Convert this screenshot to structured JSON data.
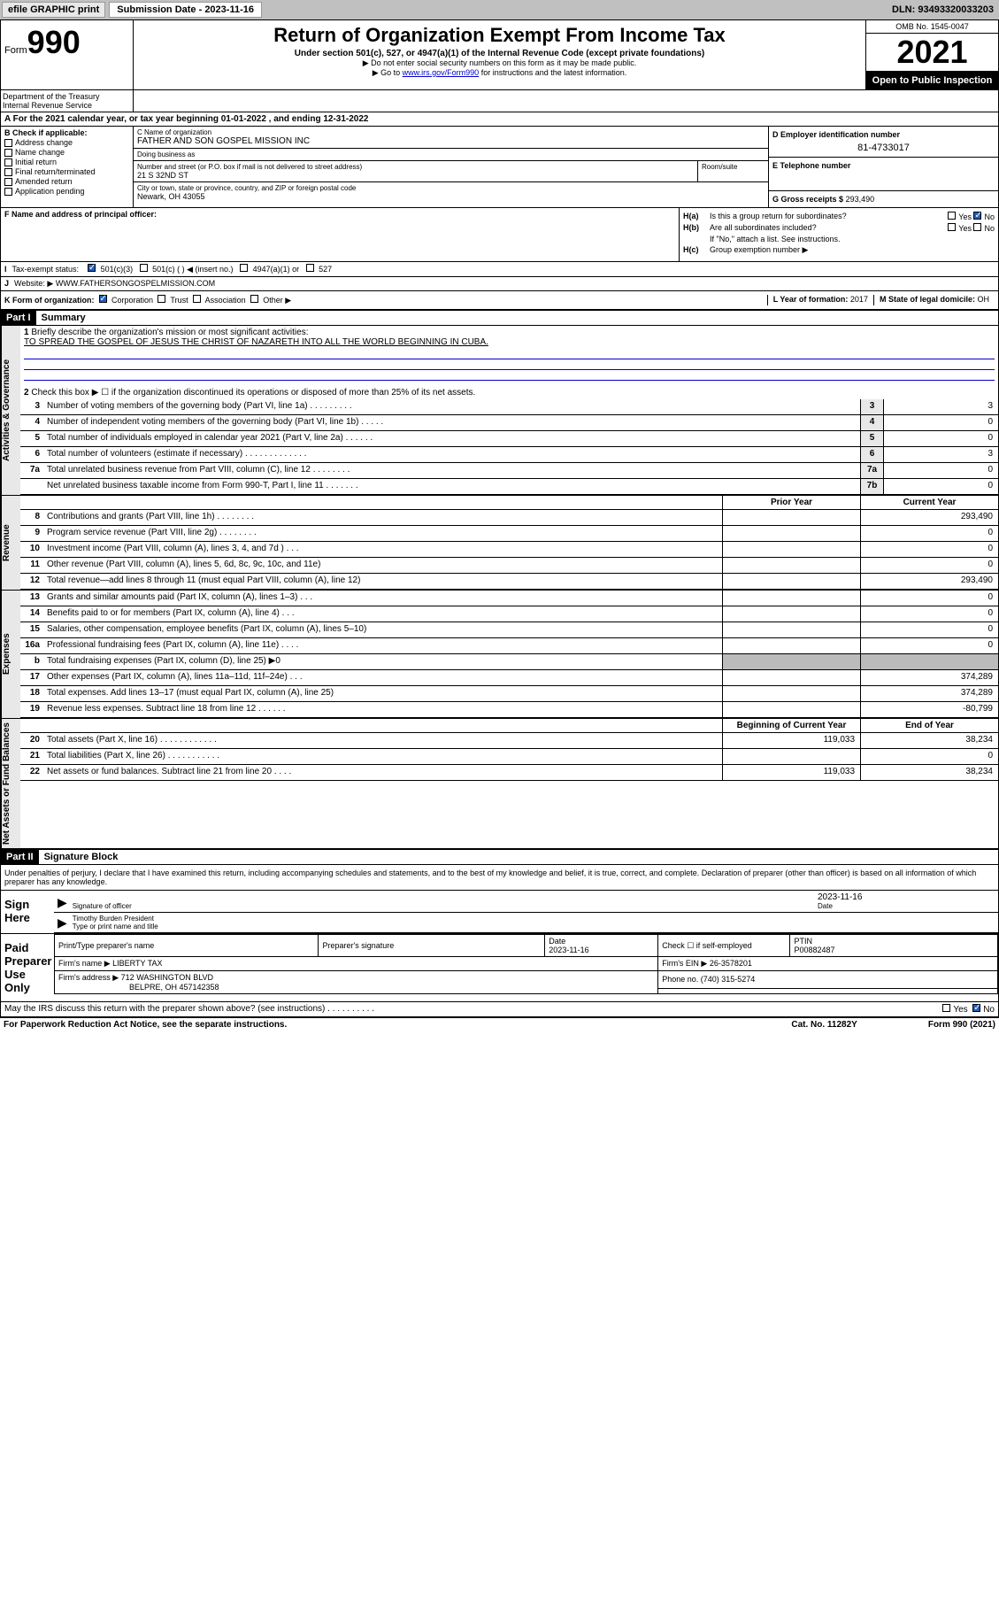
{
  "topbar": {
    "efile": "efile GRAPHIC print",
    "sub_label": "Submission Date - 2023-11-16",
    "dln": "DLN: 93493320033203"
  },
  "header": {
    "form_word": "Form",
    "form_num": "990",
    "title": "Return of Organization Exempt From Income Tax",
    "subtitle": "Under section 501(c), 527, or 4947(a)(1) of the Internal Revenue Code (except private foundations)",
    "note1": "▶ Do not enter social security numbers on this form as it may be made public.",
    "note2_pre": "▶ Go to ",
    "note2_link": "www.irs.gov/Form990",
    "note2_post": " for instructions and the latest information.",
    "dept": "Department of the Treasury\nInternal Revenue Service",
    "omb": "OMB No. 1545-0047",
    "year": "2021",
    "inspection": "Open to Public Inspection"
  },
  "period": "For the 2021 calendar year, or tax year beginning 01-01-2022   , and ending 12-31-2022",
  "section_b": {
    "header": "B Check if applicable:",
    "items": [
      "Address change",
      "Name change",
      "Initial return",
      "Final return/terminated",
      "Amended return",
      "Application pending"
    ]
  },
  "section_c": {
    "name_label": "C Name of organization",
    "name": "FATHER AND SON GOSPEL MISSION INC",
    "dba_label": "Doing business as",
    "dba": "",
    "addr_label": "Number and street (or P.O. box if mail is not delivered to street address)",
    "room_label": "Room/suite",
    "addr": "21 S 32ND ST",
    "city_label": "City or town, state or province, country, and ZIP or foreign postal code",
    "city": "Newark, OH  43055"
  },
  "section_d": {
    "label": "D Employer identification number",
    "val": "81-4733017"
  },
  "section_e": {
    "label": "E Telephone number",
    "val": ""
  },
  "section_g": {
    "label": "G Gross receipts $",
    "val": "293,490"
  },
  "section_f": {
    "label": "F  Name and address of principal officer:"
  },
  "section_h": {
    "a_label": "H(a)",
    "a_text": "Is this a group return for subordinates?",
    "b_label": "H(b)",
    "b_text": "Are all subordinates included?",
    "b_note": "If \"No,\" attach a list. See instructions.",
    "c_label": "H(c)",
    "c_text": "Group exemption number ▶",
    "yes": "Yes",
    "no": "No"
  },
  "section_i": {
    "label": "I",
    "text": "Tax-exempt status:",
    "opts": [
      "501(c)(3)",
      "501(c) (  ) ◀ (insert no.)",
      "4947(a)(1) or",
      "527"
    ]
  },
  "section_j": {
    "label": "J",
    "text": "Website: ▶",
    "val": "WWW.FATHERSONGOSPELMISSION.COM"
  },
  "section_k": {
    "label": "K Form of organization:",
    "opts": [
      "Corporation",
      "Trust",
      "Association",
      "Other ▶"
    ],
    "l_label": "L Year of formation:",
    "l_val": "2017",
    "m_label": "M State of legal domicile:",
    "m_val": "OH"
  },
  "part1": {
    "header": "Part I",
    "title": "Summary",
    "line1_label": "1",
    "line1_text": "Briefly describe the organization's mission or most significant activities:",
    "mission": "TO SPREAD THE GOSPEL OF JESUS THE CHRIST OF NAZARETH INTO ALL THE WORLD BEGINNING IN CUBA.",
    "line2_label": "2",
    "line2_text": "Check this box ▶ ☐  if the organization discontinued its operations or disposed of more than 25% of its net assets."
  },
  "sidelabels": {
    "gov": "Activities & Governance",
    "rev": "Revenue",
    "exp": "Expenses",
    "net": "Net Assets or Fund Balances"
  },
  "gov_lines": [
    {
      "n": "3",
      "t": "Number of voting members of the governing body (Part VI, line 1a)   .    .    .    .    .    .    .    .    .",
      "b": "3",
      "v": "3"
    },
    {
      "n": "4",
      "t": "Number of independent voting members of the governing body (Part VI, line 1b)   .    .    .    .    .",
      "b": "4",
      "v": "0"
    },
    {
      "n": "5",
      "t": "Total number of individuals employed in calendar year 2021 (Part V, line 2a)   .    .    .    .    .    .",
      "b": "5",
      "v": "0"
    },
    {
      "n": "6",
      "t": "Total number of volunteers (estimate if necessary)   .    .    .    .    .    .    .    .    .    .    .    .    .",
      "b": "6",
      "v": "3"
    },
    {
      "n": "7a",
      "t": "Total unrelated business revenue from Part VIII, column (C), line 12   .    .    .    .    .    .    .    .",
      "b": "7a",
      "v": "0"
    },
    {
      "n": "",
      "t": "Net unrelated business taxable income from Form 990-T, Part I, line 11   .    .    .    .    .    .    .",
      "b": "7b",
      "v": "0"
    }
  ],
  "col_headers": {
    "prior": "Prior Year",
    "current": "Current Year",
    "begin": "Beginning of Current Year",
    "end": "End of Year"
  },
  "rev_lines": [
    {
      "n": "8",
      "t": "Contributions and grants (Part VIII, line 1h)   .    .    .    .    .    .    .    .",
      "p": "",
      "c": "293,490"
    },
    {
      "n": "9",
      "t": "Program service revenue (Part VIII, line 2g)   .    .    .    .    .    .    .    .",
      "p": "",
      "c": "0"
    },
    {
      "n": "10",
      "t": "Investment income (Part VIII, column (A), lines 3, 4, and 7d )   .    .    .",
      "p": "",
      "c": "0"
    },
    {
      "n": "11",
      "t": "Other revenue (Part VIII, column (A), lines 5, 6d, 8c, 9c, 10c, and 11e)",
      "p": "",
      "c": "0"
    },
    {
      "n": "12",
      "t": "Total revenue—add lines 8 through 11 (must equal Part VIII, column (A), line 12)",
      "p": "",
      "c": "293,490"
    }
  ],
  "exp_lines": [
    {
      "n": "13",
      "t": "Grants and similar amounts paid (Part IX, column (A), lines 1–3)   .    .    .",
      "p": "",
      "c": "0"
    },
    {
      "n": "14",
      "t": "Benefits paid to or for members (Part IX, column (A), line 4)   .    .    .",
      "p": "",
      "c": "0"
    },
    {
      "n": "15",
      "t": "Salaries, other compensation, employee benefits (Part IX, column (A), lines 5–10)",
      "p": "",
      "c": "0"
    },
    {
      "n": "16a",
      "t": "Professional fundraising fees (Part IX, column (A), line 11e)   .    .    .    .",
      "p": "",
      "c": "0"
    },
    {
      "n": "b",
      "t": "Total fundraising expenses (Part IX, column (D), line 25) ▶0",
      "p": "shade",
      "c": "shade"
    },
    {
      "n": "17",
      "t": "Other expenses (Part IX, column (A), lines 11a–11d, 11f–24e)   .    .    .",
      "p": "",
      "c": "374,289"
    },
    {
      "n": "18",
      "t": "Total expenses. Add lines 13–17 (must equal Part IX, column (A), line 25)",
      "p": "",
      "c": "374,289"
    },
    {
      "n": "19",
      "t": "Revenue less expenses. Subtract line 18 from line 12   .    .    .    .    .    .",
      "p": "",
      "c": "-80,799"
    }
  ],
  "net_lines": [
    {
      "n": "20",
      "t": "Total assets (Part X, line 16)   .    .    .    .    .    .    .    .    .    .    .    .",
      "p": "119,033",
      "c": "38,234"
    },
    {
      "n": "21",
      "t": "Total liabilities (Part X, line 26)   .    .    .    .    .    .    .    .    .    .    .",
      "p": "",
      "c": "0"
    },
    {
      "n": "22",
      "t": "Net assets or fund balances. Subtract line 21 from line 20   .    .    .    .",
      "p": "119,033",
      "c": "38,234"
    }
  ],
  "part2": {
    "header": "Part II",
    "title": "Signature Block",
    "decl": "Under penalties of perjury, I declare that I have examined this return, including accompanying schedules and statements, and to the best of my knowledge and belief, it is true, correct, and complete. Declaration of preparer (other than officer) is based on all information of which preparer has any knowledge."
  },
  "sign": {
    "here": "Sign Here",
    "sig_label": "Signature of officer",
    "date_label": "Date",
    "date": "2023-11-16",
    "name": "Timothy Burden  President",
    "name_label": "Type or print name and title"
  },
  "preparer": {
    "title": "Paid Preparer Use Only",
    "name_label": "Print/Type preparer's name",
    "sig_label": "Preparer's signature",
    "date_label": "Date",
    "date": "2023-11-16",
    "check_label": "Check ☐ if self-employed",
    "ptin_label": "PTIN",
    "ptin": "P00882487",
    "firm_name_label": "Firm's name    ▶",
    "firm_name": "LIBERTY TAX",
    "firm_ein_label": "Firm's EIN ▶",
    "firm_ein": "26-3578201",
    "firm_addr_label": "Firm's address ▶",
    "firm_addr": "712 WASHINGTON BLVD",
    "firm_city": "BELPRE, OH  457142358",
    "phone_label": "Phone no.",
    "phone": "(740) 315-5274"
  },
  "discuss": {
    "text": "May the IRS discuss this return with the preparer shown above? (see instructions)   .    .    .    .    .    .    .    .    .    .",
    "yes": "Yes",
    "no": "No"
  },
  "footer": {
    "left": "For Paperwork Reduction Act Notice, see the separate instructions.",
    "mid": "Cat. No. 11282Y",
    "right": "Form 990 (2021)"
  }
}
